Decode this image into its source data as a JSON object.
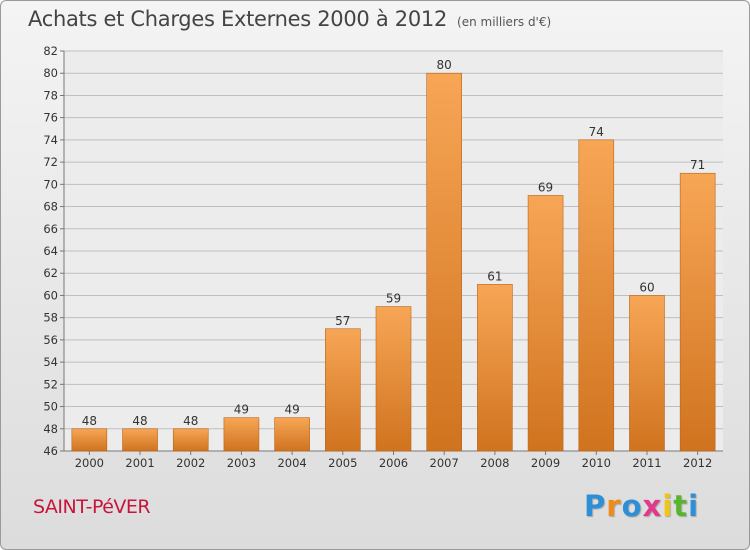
{
  "header": {
    "title": "Achats et Charges Externes 2000 à 2012",
    "unit": "(en milliers d'€)"
  },
  "footer": {
    "city": "SAINT-PéVER",
    "logo": "Proxiti",
    "logo_colors": [
      "#2e8fd6",
      "#f08a1c",
      "#2e8fd6",
      "#e03a8c",
      "#f0c419",
      "#5ab52e",
      "#2e8fd6"
    ]
  },
  "colors": {
    "bar_light": "#f7a656",
    "bar_dark": "#d0731f",
    "grid": "#bfbfbf",
    "plot_bg": "#ececec"
  },
  "chart_data": {
    "type": "bar",
    "categories": [
      "2000",
      "2001",
      "2002",
      "2003",
      "2004",
      "2005",
      "2006",
      "2007",
      "2008",
      "2009",
      "2010",
      "2011",
      "2012"
    ],
    "values": [
      48,
      48,
      48,
      49,
      49,
      57,
      59,
      80,
      61,
      69,
      74,
      60,
      71
    ],
    "title": "Achats et Charges Externes 2000 à 2012",
    "ylim": [
      46,
      82
    ],
    "yticks": [
      46,
      48,
      50,
      52,
      54,
      56,
      58,
      60,
      62,
      64,
      66,
      68,
      70,
      72,
      74,
      76,
      78,
      80,
      82
    ],
    "grid": true,
    "data_labels": true
  }
}
